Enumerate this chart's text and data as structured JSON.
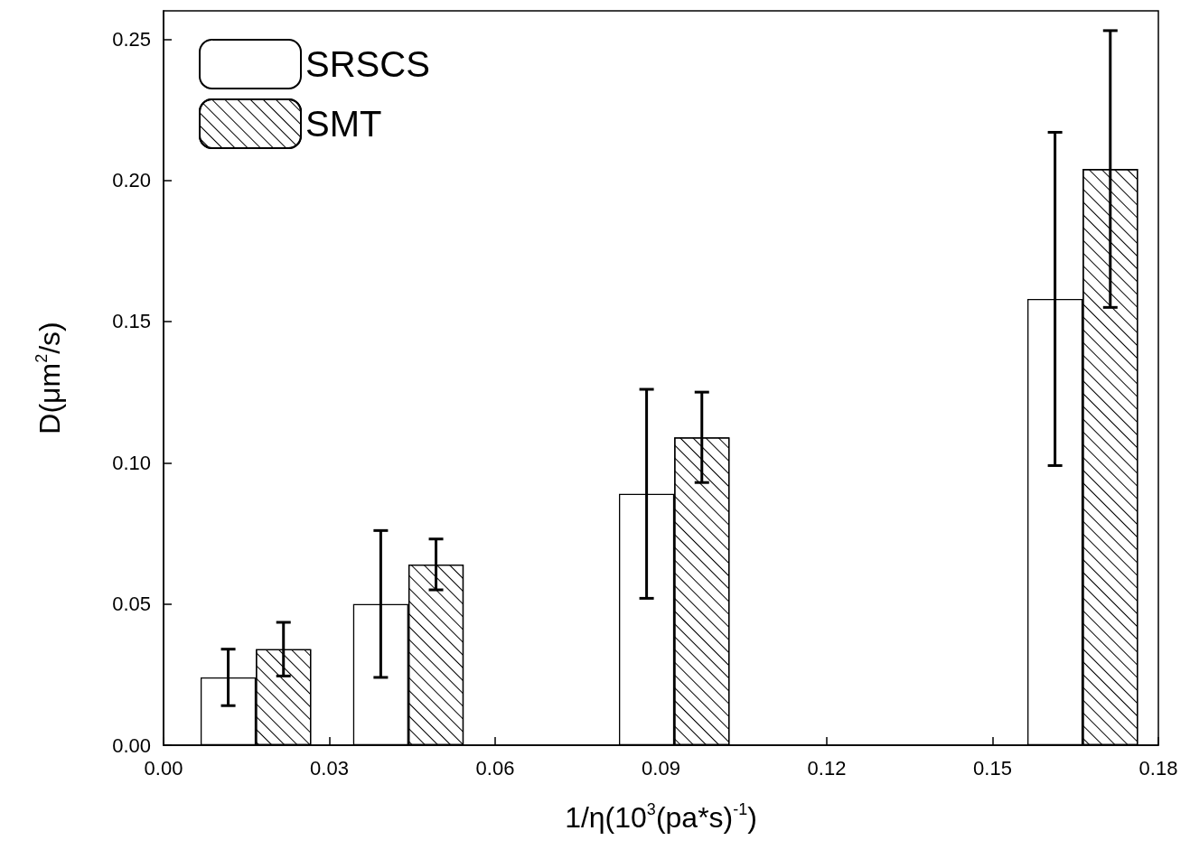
{
  "chart_data": {
    "type": "bar",
    "xlabel": "1/η(10$^{3}$(pa*s)$^{-1}$)",
    "ylabel": "D(μm$^{2}$/s)",
    "series": [
      {
        "name": "SRSCS",
        "color": "#ffffff",
        "x": [
          0.0117,
          0.0393,
          0.0874,
          0.1613
        ],
        "values": [
          0.024,
          0.05,
          0.089,
          0.158
        ],
        "errors": [
          0.01,
          0.026,
          0.037,
          0.059
        ]
      },
      {
        "name": "SMT",
        "color": "#ffffff",
        "x": [
          0.0217,
          0.0493,
          0.0974,
          0.1713
        ],
        "values": [
          0.034,
          0.064,
          0.109,
          0.204
        ],
        "errors": [
          0.0095,
          0.009,
          0.016,
          0.049
        ]
      }
    ],
    "xlim": [
      0,
      0.18
    ],
    "xticks": [
      {
        "value": 0,
        "label": "0.00"
      },
      {
        "value": 0.03,
        "label": "0.03"
      },
      {
        "value": 0.06,
        "label": "0.06"
      },
      {
        "value": 0.09,
        "label": "0.09"
      },
      {
        "value": 0.12,
        "label": "0.12"
      },
      {
        "value": 0.15,
        "label": "0.15"
      },
      {
        "value": 0.18,
        "label": "0.18"
      }
    ],
    "ylim": [
      0,
      0.26
    ],
    "yticks": [
      {
        "value": 0,
        "label": "0.00"
      },
      {
        "value": 0.05,
        "label": "0.05"
      },
      {
        "value": 0.1,
        "label": "0.10"
      },
      {
        "value": 0.15,
        "label": "0.15"
      },
      {
        "value": 0.2,
        "label": "0.20"
      },
      {
        "value": 0.25,
        "label": "0.25"
      }
    ],
    "legend": "top left",
    "grid": false
  }
}
